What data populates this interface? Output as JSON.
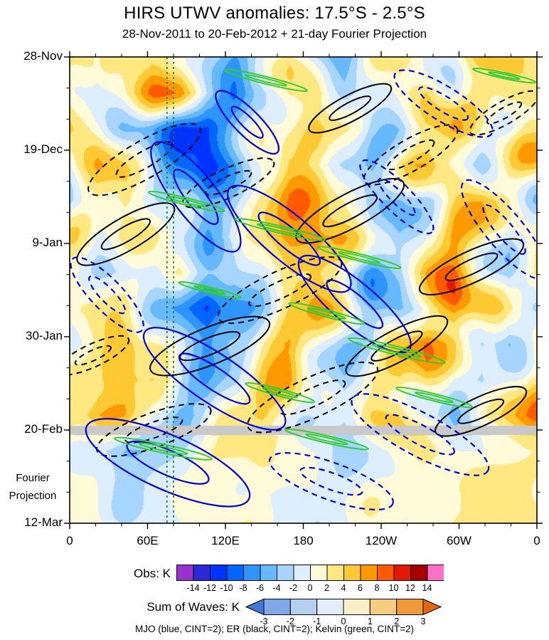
{
  "chart_data": {
    "type": "heatmap",
    "title": "HIRS UTWV anomalies: 17.5°S - 2.5°S",
    "subtitle": "28-Nov-2011 to 20-Feb-2012 + 21-day Fourier Projection",
    "x_axis": {
      "tick_labels": [
        "0",
        "60E",
        "120E",
        "180",
        "120W",
        "60W",
        "0"
      ],
      "domain_degrees": [
        0,
        360
      ]
    },
    "y_axis": {
      "tick_labels": [
        "28-Nov",
        "19-Dec",
        "9-Jan",
        "30-Jan",
        "20-Feb",
        "12-Mar"
      ],
      "tick_spacing_days": 21,
      "direction": "time increases downward"
    },
    "fourier_label_lines": [
      "Fourier",
      "Projection"
    ],
    "projection_start_label": "20-Feb",
    "colorbars": [
      {
        "label": "Obs: K",
        "tick_labels": [
          "-14",
          "-12",
          "-10",
          "-8",
          "-6",
          "-4",
          "-2",
          "0",
          "2",
          "4",
          "6",
          "8",
          "10",
          "12",
          "14"
        ],
        "colors": [
          "#9932CC",
          "#2929D6",
          "#0033FF",
          "#0066FF",
          "#2E95FF",
          "#66B8FF",
          "#A6D5FF",
          "#DCEEFF",
          "#FFFAD7",
          "#FFE882",
          "#FFC933",
          "#FF9900",
          "#FF5A00",
          "#E31A00",
          "#A40000",
          "#FF6EC7"
        ]
      },
      {
        "label": "Sum of Waves: K",
        "tick_labels": [
          "-3",
          "-2",
          "-1",
          "0",
          "1",
          "2",
          "3"
        ],
        "colors": [
          "#4477DD",
          "#7FA8E8",
          "#B4D0F0",
          "#E2EEF8",
          "#F8EFC8",
          "#F6CD7E",
          "#EF9A3A",
          "#E06610"
        ]
      }
    ],
    "legend_caption": "MJO (blue, CINT=2); ER (black, CINT=2); Kelvin (green, CINT=2)",
    "wave_colors": {
      "mjo": "#0000DD",
      "er": "#000000",
      "kelvin": "#33CC33",
      "kelvin_guide": "#1E7A1E"
    },
    "kelvin_guide_lons_deg": [
      75,
      80
    ],
    "gray_band": {
      "at_label": "20-Feb",
      "color": "#C9C9C9"
    },
    "field_grid": {
      "units": "K",
      "rows": 14,
      "cols": 18,
      "lon_step_deg": 20,
      "values": [
        [
          1,
          -2,
          4,
          6,
          3,
          -3,
          -5,
          -2,
          2,
          -3,
          -4,
          1,
          3,
          -1,
          2,
          4,
          5,
          2
        ],
        [
          2,
          -1,
          2,
          5,
          6,
          -2,
          -6,
          -4,
          3,
          4,
          -2,
          -3,
          2,
          4,
          -2,
          2,
          6,
          3
        ],
        [
          4,
          2,
          -2,
          -5,
          -9,
          -11,
          -5,
          0,
          3,
          4,
          1,
          -3,
          -2,
          3,
          6,
          2,
          -1,
          3
        ],
        [
          2,
          4,
          1,
          -3,
          -7,
          -12,
          -6,
          2,
          5,
          2,
          -2,
          -4,
          1,
          5,
          3,
          -2,
          2,
          4
        ],
        [
          -2,
          3,
          5,
          0,
          -4,
          -7,
          -3,
          3,
          6,
          7,
          3,
          -2,
          -5,
          -2,
          3,
          5,
          2,
          -1
        ],
        [
          1,
          -2,
          3,
          4,
          -2,
          -4,
          0,
          4,
          7,
          9,
          4,
          -1,
          -4,
          2,
          6,
          3,
          -3,
          1
        ],
        [
          3,
          1,
          -3,
          -2,
          2,
          -3,
          -6,
          -2,
          4,
          6,
          0,
          -5,
          -3,
          5,
          7,
          2,
          -2,
          3
        ],
        [
          0,
          3,
          2,
          -2,
          -6,
          -10,
          -7,
          -2,
          3,
          5,
          2,
          -3,
          -5,
          2,
          8,
          5,
          0,
          -2
        ],
        [
          -2,
          2,
          5,
          3,
          -3,
          -8,
          -4,
          2,
          6,
          3,
          -2,
          -4,
          3,
          9,
          6,
          -2,
          -4,
          1
        ],
        [
          2,
          5,
          7,
          4,
          -1,
          -4,
          -2,
          3,
          5,
          -2,
          -4,
          2,
          6,
          4,
          -2,
          -4,
          2,
          4
        ],
        [
          4,
          6,
          5,
          -2,
          -5,
          -2,
          3,
          6,
          4,
          -2,
          -3,
          3,
          5,
          -2,
          -4,
          2,
          5,
          6
        ],
        [
          0,
          -2,
          -4,
          -3,
          -1,
          1,
          2,
          2,
          0,
          -1,
          -2,
          -1,
          1,
          2,
          1,
          0,
          1,
          2
        ],
        [
          1,
          -1,
          -3,
          -2,
          0,
          1,
          2,
          1,
          0,
          -1,
          -1,
          0,
          1,
          1,
          2,
          2,
          3,
          2
        ],
        [
          2,
          1,
          -1,
          -1,
          0,
          1,
          1,
          0,
          -1,
          -1,
          0,
          1,
          1,
          2,
          2,
          3,
          4,
          3
        ]
      ]
    },
    "overlays": {
      "mjo": [
        [
          0.27,
          0.3,
          95,
          30,
          52,
          0
        ],
        [
          0.47,
          0.39,
          110,
          32,
          40,
          0
        ],
        [
          0.61,
          0.53,
          100,
          30,
          40,
          0
        ],
        [
          0.31,
          0.69,
          118,
          34,
          34,
          0
        ],
        [
          0.21,
          0.87,
          125,
          38,
          24,
          0
        ],
        [
          0.38,
          0.14,
          60,
          18,
          45,
          0
        ],
        [
          0.8,
          0.1,
          80,
          24,
          32,
          1
        ],
        [
          0.93,
          0.37,
          88,
          26,
          50,
          1
        ],
        [
          0.75,
          0.81,
          108,
          30,
          28,
          1
        ],
        [
          0.08,
          0.51,
          70,
          22,
          46,
          1
        ],
        [
          0.56,
          0.91,
          92,
          26,
          20,
          1
        ],
        [
          0.7,
          0.3,
          70,
          20,
          45,
          1
        ]
      ],
      "er": [
        [
          0.16,
          0.22,
          90,
          26,
          -30,
          1
        ],
        [
          0.34,
          0.27,
          70,
          20,
          -25,
          1
        ],
        [
          0.12,
          0.38,
          78,
          23,
          -30,
          0
        ],
        [
          0.45,
          0.5,
          95,
          26,
          -25,
          1
        ],
        [
          0.6,
          0.33,
          85,
          24,
          -28,
          0
        ],
        [
          0.73,
          0.21,
          75,
          22,
          -30,
          1
        ],
        [
          0.86,
          0.45,
          80,
          22,
          -25,
          0
        ],
        [
          0.3,
          0.62,
          90,
          26,
          -22,
          0
        ],
        [
          0.52,
          0.73,
          100,
          28,
          -25,
          1
        ],
        [
          0.7,
          0.62,
          80,
          22,
          -28,
          0
        ],
        [
          0.18,
          0.8,
          85,
          24,
          -20,
          1
        ],
        [
          0.88,
          0.76,
          70,
          20,
          -25,
          0
        ],
        [
          0.6,
          0.11,
          65,
          18,
          -28,
          0
        ],
        [
          0.93,
          0.12,
          55,
          16,
          -30,
          1
        ],
        [
          0.05,
          0.64,
          55,
          16,
          -25,
          1
        ]
      ],
      "kelvin": [
        [
          0.42,
          0.05,
          60,
          5,
          14,
          0
        ],
        [
          0.93,
          0.04,
          45,
          4,
          12,
          0
        ],
        [
          0.25,
          0.31,
          55,
          5,
          14,
          0
        ],
        [
          0.45,
          0.37,
          65,
          5,
          13,
          0
        ],
        [
          0.62,
          0.43,
          60,
          5,
          14,
          0
        ],
        [
          0.3,
          0.5,
          45,
          4,
          14,
          0
        ],
        [
          0.55,
          0.55,
          55,
          5,
          15,
          0
        ],
        [
          0.7,
          0.63,
          70,
          6,
          14,
          0
        ],
        [
          0.45,
          0.72,
          50,
          5,
          15,
          0
        ],
        [
          0.2,
          0.84,
          70,
          6,
          12,
          0
        ],
        [
          0.55,
          0.82,
          60,
          5,
          13,
          0
        ],
        [
          0.78,
          0.73,
          55,
          5,
          14,
          0
        ]
      ]
    }
  }
}
